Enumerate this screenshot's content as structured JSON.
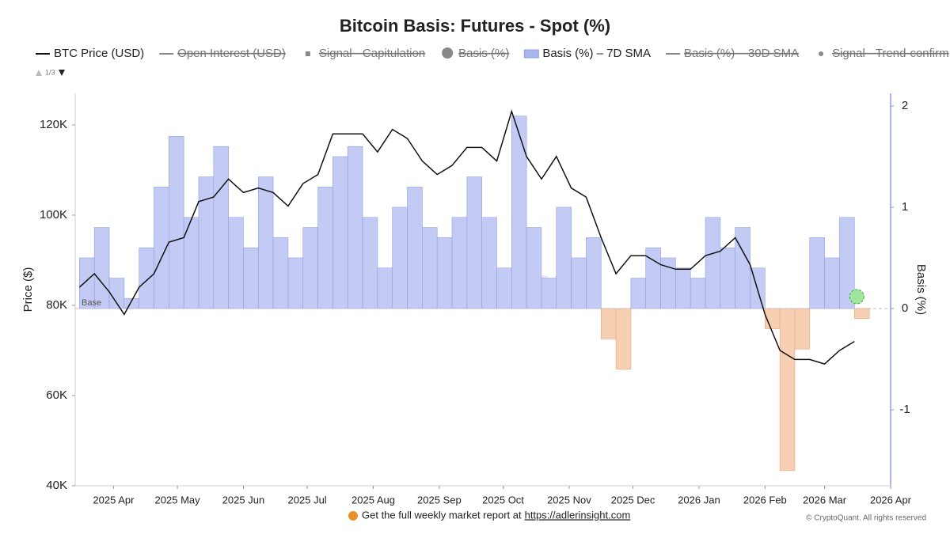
{
  "chart_data": {
    "type": "line",
    "title": "Bitcoin Basis: Futures - Spot (%)",
    "legend": [
      {
        "name": "BTC Price (USD)",
        "symbol": "line",
        "color": "#111111",
        "hidden": false
      },
      {
        "name": "Open Interest (USD)",
        "symbol": "line",
        "color": "#888888",
        "hidden": true
      },
      {
        "name": "Signal - Capitulation",
        "symbol": "square",
        "color": "#666666",
        "hidden": true
      },
      {
        "name": "Basis (%)",
        "symbol": "circle",
        "color": "#666666",
        "hidden": true
      },
      {
        "name": "Basis (%) – 7D SMA",
        "symbol": "area",
        "color": "#aab6ee",
        "hidden": false
      },
      {
        "name": "Basis (%) – 30D SMA",
        "symbol": "line",
        "color": "#888888",
        "hidden": true
      },
      {
        "name": "Signal - Trend-confirm",
        "symbol": "dot",
        "color": "#666666",
        "hidden": true
      }
    ],
    "legend_page": "1/3",
    "x": [
      "2025-03-16",
      "2025-03-23",
      "2025-03-30",
      "2025-04-06",
      "2025-04-13",
      "2025-04-20",
      "2025-04-27",
      "2025-05-04",
      "2025-05-11",
      "2025-05-18",
      "2025-05-25",
      "2025-06-01",
      "2025-06-08",
      "2025-06-15",
      "2025-06-22",
      "2025-06-29",
      "2025-07-06",
      "2025-07-13",
      "2025-07-20",
      "2025-07-27",
      "2025-08-03",
      "2025-08-10",
      "2025-08-17",
      "2025-08-24",
      "2025-08-31",
      "2025-09-07",
      "2025-09-14",
      "2025-09-21",
      "2025-09-28",
      "2025-10-05",
      "2025-10-12",
      "2025-10-19",
      "2025-10-26",
      "2025-11-02",
      "2025-11-09",
      "2025-11-16",
      "2025-11-23",
      "2025-11-30",
      "2025-12-07",
      "2025-12-14",
      "2025-12-21",
      "2025-12-28",
      "2026-01-04",
      "2026-01-11",
      "2026-01-18",
      "2026-01-25",
      "2026-02-01",
      "2026-02-08",
      "2026-02-15",
      "2026-02-22",
      "2026-03-01",
      "2026-03-08",
      "2026-03-15"
    ],
    "series": [
      {
        "name": "BTC Price (USD)",
        "color": "#111111",
        "axis": "y",
        "values": [
          84000,
          87000,
          83000,
          78000,
          84000,
          87000,
          94000,
          95000,
          103000,
          104000,
          108000,
          105000,
          106000,
          105000,
          102000,
          107000,
          109000,
          118000,
          118000,
          118000,
          114000,
          119000,
          117000,
          112000,
          109000,
          111000,
          115000,
          115000,
          112000,
          123000,
          113000,
          108000,
          113000,
          106000,
          104000,
          95000,
          87000,
          91000,
          91000,
          89000,
          88000,
          88000,
          91000,
          92000,
          95000,
          89000,
          78000,
          70000,
          68000,
          68000,
          67000,
          70000,
          72000
        ]
      },
      {
        "name": "Basis (%) – 7D SMA",
        "color": "#c3cbf4",
        "negative_color": "#f7cfb2",
        "axis": "y2",
        "values": [
          0.5,
          0.8,
          0.3,
          0.1,
          0.6,
          1.2,
          1.7,
          0.9,
          1.3,
          1.6,
          0.9,
          0.6,
          1.3,
          0.7,
          0.5,
          0.8,
          1.2,
          1.5,
          1.6,
          0.9,
          0.4,
          1.0,
          1.2,
          0.8,
          0.7,
          0.9,
          1.3,
          0.9,
          0.4,
          1.9,
          0.8,
          0.3,
          1.0,
          0.5,
          0.7,
          -0.3,
          -0.6,
          0.3,
          0.6,
          0.5,
          0.4,
          0.3,
          0.9,
          0.6,
          0.8,
          0.4,
          -0.2,
          -1.6,
          -0.4,
          0.7,
          0.5,
          0.9,
          -0.1
        ]
      }
    ],
    "xlim": [
      "2025-03-14",
      "2026-04-01"
    ],
    "xticks": [
      {
        "value": "2025-04-01",
        "label": "2025 Apr"
      },
      {
        "value": "2025-05-01",
        "label": "2025 May"
      },
      {
        "value": "2025-06-01",
        "label": "2025 Jun"
      },
      {
        "value": "2025-07-01",
        "label": "2025 Jul"
      },
      {
        "value": "2025-08-01",
        "label": "2025 Aug"
      },
      {
        "value": "2025-09-01",
        "label": "2025 Sep"
      },
      {
        "value": "2025-10-01",
        "label": "2025 Oct"
      },
      {
        "value": "2025-11-01",
        "label": "2025 Nov"
      },
      {
        "value": "2025-12-01",
        "label": "2025 Dec"
      },
      {
        "value": "2026-01-01",
        "label": "2026 Jan"
      },
      {
        "value": "2026-02-01",
        "label": "2026 Feb"
      },
      {
        "value": "2026-03-01",
        "label": "2026 Mar"
      },
      {
        "value": "2026-04-01",
        "label": "2026 Apr"
      }
    ],
    "ylim": [
      40000,
      127000
    ],
    "yticks": [
      {
        "value": 40000,
        "label": "40K"
      },
      {
        "value": 60000,
        "label": "60K"
      },
      {
        "value": 80000,
        "label": "80K"
      },
      {
        "value": 100000,
        "label": "100K"
      },
      {
        "value": 120000,
        "label": "120K"
      }
    ],
    "y2lim": [
      -1.75,
      2.125
    ],
    "y2ticks": [
      -1,
      0,
      1,
      2
    ],
    "ylabel": "Price ($)",
    "y2label": "Basis (%)",
    "baseline_label": "Base",
    "watermark": "CryptoQuant",
    "footer": "Get the full weekly market report at",
    "footer_link": "https://adlerinsight.com",
    "copyright": "© CryptoQuant. All rights reserved"
  }
}
